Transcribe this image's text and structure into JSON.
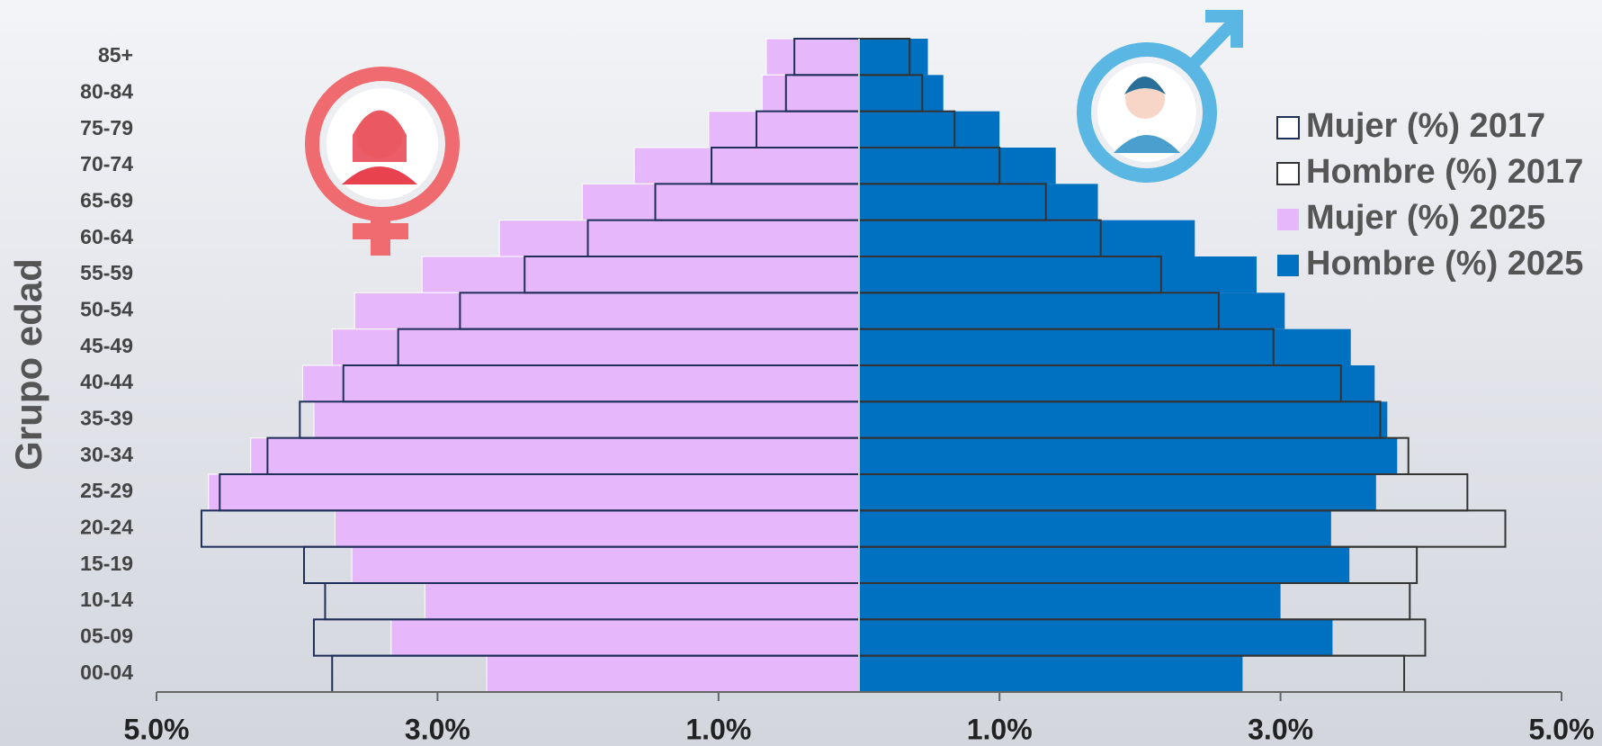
{
  "chart_data": {
    "type": "bar",
    "orientation": "horizontal",
    "layout": "pyramid",
    "y_label": "Grupo edad",
    "categories": [
      "85+",
      "80-84",
      "75-79",
      "70-74",
      "65-69",
      "60-64",
      "55-59",
      "50-54",
      "45-49",
      "40-44",
      "35-39",
      "30-34",
      "25-29",
      "20-24",
      "15-19",
      "10-14",
      "05-09",
      "00-04"
    ],
    "series": [
      {
        "name": "Mujer (%) 2017",
        "color": "#1f2f5a",
        "style": "outline",
        "side": "left",
        "values": [
          0.46,
          0.52,
          0.73,
          1.05,
          1.45,
          1.93,
          2.38,
          2.84,
          3.28,
          3.67,
          3.98,
          4.21,
          4.55,
          4.68,
          3.95,
          3.8,
          3.88,
          3.75
        ]
      },
      {
        "name": "Hombre (%) 2017",
        "color": "#333333",
        "style": "outline",
        "side": "right",
        "values": [
          0.36,
          0.45,
          0.68,
          1.0,
          1.33,
          1.72,
          2.15,
          2.56,
          2.95,
          3.43,
          3.71,
          3.91,
          4.33,
          4.6,
          3.97,
          3.92,
          4.03,
          3.88
        ]
      },
      {
        "name": "Mujer (%) 2025",
        "color": "#e6b8fb",
        "style": "fill",
        "side": "left",
        "values": [
          0.66,
          0.69,
          1.07,
          1.6,
          1.97,
          2.56,
          3.11,
          3.59,
          3.75,
          3.96,
          3.88,
          4.33,
          4.63,
          3.73,
          3.61,
          3.09,
          3.33,
          2.65
        ]
      },
      {
        "name": "Hombre (%) 2025",
        "color": "#0070c0",
        "style": "fill",
        "side": "right",
        "values": [
          0.49,
          0.6,
          1.0,
          1.4,
          1.7,
          2.39,
          2.83,
          3.03,
          3.5,
          3.67,
          3.76,
          3.83,
          3.68,
          3.36,
          3.49,
          3.0,
          3.37,
          2.73
        ]
      }
    ],
    "xlim": [
      -5,
      5
    ],
    "xticks": [
      {
        "value": -5,
        "label": "5.0%"
      },
      {
        "value": -3,
        "label": "3.0%"
      },
      {
        "value": -1,
        "label": "1.0%"
      },
      {
        "value": 1,
        "label": "1.0%"
      },
      {
        "value": 3,
        "label": "3.0%"
      },
      {
        "value": 5,
        "label": "5.0%"
      }
    ],
    "legend": "top-right"
  }
}
